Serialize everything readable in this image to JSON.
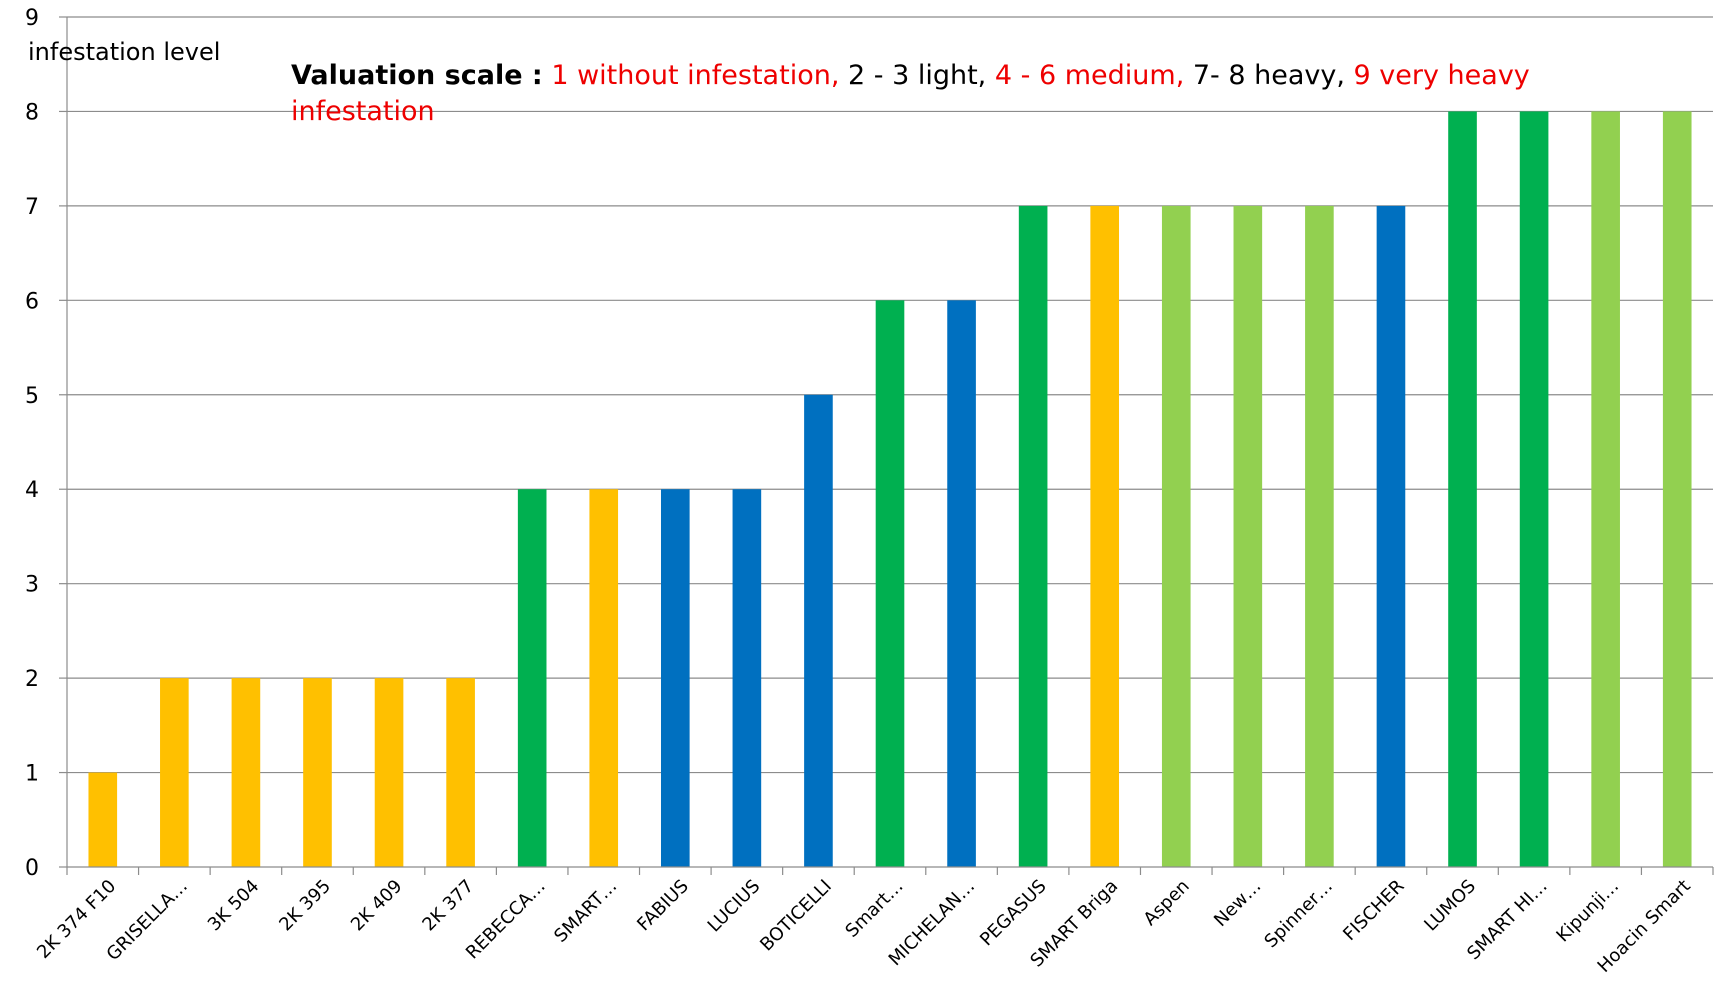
{
  "chart_data": {
    "type": "bar",
    "ylabel": "infestation level",
    "ylim": [
      0,
      9
    ],
    "yticks": [
      0,
      1,
      2,
      3,
      4,
      5,
      6,
      7,
      8,
      9
    ],
    "grid": true,
    "categories": [
      "2K 374 F10",
      "GRISELLA…",
      "3K 504",
      "2K 395",
      "2K 409",
      "2K 377",
      "REBECCA…",
      "SMART…",
      "FABIUS",
      "LUCIUS",
      "BOTICELLI",
      "Smart…",
      "MICHELAN…",
      "PEGASUS",
      "SMART Briga",
      "Aspen",
      "New…",
      "Spinner…",
      "FISCHER",
      "LUMOS",
      "SMART HI…",
      "Kipunji…",
      "Hoacin Smart"
    ],
    "values": [
      1,
      2,
      2,
      2,
      2,
      2,
      4,
      4,
      4,
      4,
      5,
      6,
      6,
      7,
      7,
      7,
      7,
      7,
      7,
      8,
      8,
      8,
      8
    ],
    "bar_colors": [
      "#FFC000",
      "#FFC000",
      "#FFC000",
      "#FFC000",
      "#FFC000",
      "#FFC000",
      "#00B050",
      "#FFC000",
      "#0070C0",
      "#0070C0",
      "#0070C0",
      "#00B050",
      "#0070C0",
      "#00B050",
      "#FFC000",
      "#92D050",
      "#92D050",
      "#92D050",
      "#0070C0",
      "#00B050",
      "#00B050",
      "#92D050",
      "#92D050"
    ],
    "annotation": {
      "heading": "Valuation scale :",
      "seg1": "1 without infestation,",
      "seg2": "2 - 3 light,",
      "seg3": "4 - 6 medium,",
      "seg4": "7- 8 heavy,",
      "seg5": "9 very heavy infestation"
    }
  }
}
